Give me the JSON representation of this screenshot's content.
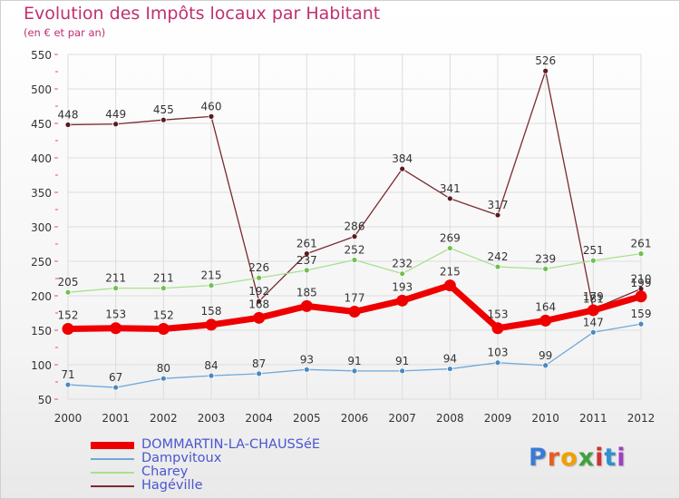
{
  "header": {
    "title": "Evolution des Impôts locaux par Habitant",
    "subtitle": "(en € et par an)"
  },
  "logo": {
    "letters": [
      "P",
      "r",
      "o",
      "x",
      "i",
      "t",
      "i"
    ]
  },
  "colors": {
    "grid": "#dddddd",
    "axis_text": "#333333",
    "value_label": "#333333",
    "logo": [
      "#3a7bd5",
      "#e85d20",
      "#f0a000",
      "#40a040",
      "#d03030",
      "#3090d0",
      "#a040c0"
    ]
  },
  "chart_data": {
    "type": "line",
    "title": "Evolution des Impôts locaux par Habitant",
    "subtitle": "(en € et par an)",
    "x": [
      2000,
      2001,
      2002,
      2003,
      2004,
      2005,
      2006,
      2007,
      2008,
      2009,
      2010,
      2011,
      2012
    ],
    "ylim": [
      50,
      550
    ],
    "yticks": [
      50,
      100,
      150,
      200,
      250,
      300,
      350,
      400,
      450,
      500,
      550
    ],
    "grid": true,
    "legend_position": "bottom-left",
    "series": [
      {
        "name": "Hagéville",
        "color": "#7a2a30",
        "marker": "#5a1a20",
        "width": 1.3,
        "values": [
          448,
          449,
          455,
          460,
          192,
          261,
          286,
          384,
          341,
          317,
          526,
          181,
          210
        ],
        "labels": [
          "448",
          "449",
          "455",
          "460",
          "192",
          "261",
          "286",
          "384",
          "341",
          "317",
          "526",
          "181",
          "210"
        ]
      },
      {
        "name": "Charey",
        "color": "#a8e090",
        "marker": "#70c050",
        "width": 1.3,
        "values": [
          205,
          211,
          211,
          215,
          226,
          237,
          252,
          232,
          269,
          242,
          239,
          251,
          261
        ],
        "labels": [
          "205",
          "211",
          "211",
          "215",
          "226",
          "237",
          "252",
          "232",
          "269",
          "242",
          "239",
          "251",
          "261"
        ]
      },
      {
        "name": "Dampvitoux",
        "color": "#70a8d8",
        "marker": "#4a88c0",
        "width": 1.3,
        "values": [
          71,
          67,
          80,
          84,
          87,
          93,
          91,
          91,
          94,
          103,
          99,
          147,
          159
        ],
        "labels": [
          "71",
          "67",
          "80",
          "84",
          "87",
          "93",
          "91",
          "91",
          "94",
          "103",
          "99",
          "147",
          "159"
        ]
      },
      {
        "name": "DOMMARTIN-LA-CHAUSSéE",
        "color": "#ee0000",
        "marker": "#ee0000",
        "width": 7,
        "values": [
          152,
          153,
          152,
          158,
          168,
          185,
          177,
          193,
          215,
          153,
          164,
          179,
          199
        ],
        "labels": [
          "152",
          "153",
          "152",
          "158",
          "168",
          "185",
          "177",
          "193",
          "215",
          "153",
          "164",
          "179",
          "199"
        ]
      }
    ],
    "legend": [
      {
        "name": "DOMMARTIN-LA-CHAUSSéE",
        "color": "#ee0000",
        "height": 8
      },
      {
        "name": "Dampvitoux",
        "color": "#70a8d8",
        "height": 2
      },
      {
        "name": "Charey",
        "color": "#a8e090",
        "height": 2
      },
      {
        "name": "Hagéville",
        "color": "#7a2a30",
        "height": 2
      }
    ]
  }
}
